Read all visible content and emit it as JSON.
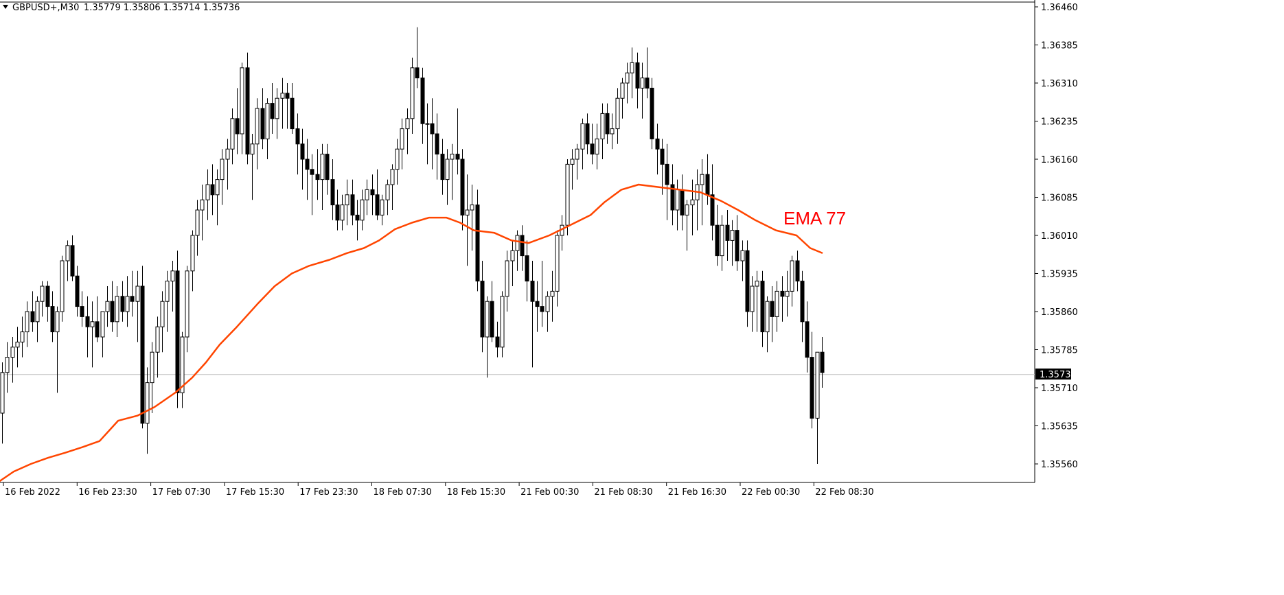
{
  "header": {
    "symbol": "GBPUSD+,M30",
    "ohlc": "1.35779 1.35806 1.35714 1.35736"
  },
  "ema_label": "EMA 77",
  "current_price_label": "1.35736",
  "colors": {
    "background": "#ffffff",
    "candle": "#000000",
    "ema": "#ff4500",
    "ema_label": "#ff0000",
    "price_line": "#c0c0c0"
  },
  "chart_data": {
    "type": "candlestick",
    "timeframe": "M30",
    "ylim": [
      1.3553,
      1.3647
    ],
    "yticks": [
      "1.36460",
      "1.36385",
      "1.36310",
      "1.36235",
      "1.36160",
      "1.36085",
      "1.36010",
      "1.35935",
      "1.35860",
      "1.35785",
      "1.35710",
      "1.35635",
      "1.35560"
    ],
    "xticks": [
      "16 Feb 2022",
      "16 Feb 23:30",
      "17 Feb 07:30",
      "17 Feb 15:30",
      "17 Feb 23:30",
      "18 Feb 07:30",
      "18 Feb 15:30",
      "21 Feb 00:30",
      "21 Feb 08:30",
      "21 Feb 16:30",
      "22 Feb 00:30",
      "22 Feb 08:30"
    ],
    "current_price": 1.35736,
    "candles": [
      [
        1.3566,
        1.3576,
        1.356,
        1.3574
      ],
      [
        1.3574,
        1.358,
        1.357,
        1.3577
      ],
      [
        1.3577,
        1.3581,
        1.3572,
        1.3579
      ],
      [
        1.3579,
        1.3583,
        1.3575,
        1.358
      ],
      [
        1.358,
        1.3585,
        1.3577,
        1.3582
      ],
      [
        1.3582,
        1.3588,
        1.3579,
        1.3586
      ],
      [
        1.3586,
        1.359,
        1.3582,
        1.3584
      ],
      [
        1.3584,
        1.3589,
        1.358,
        1.3588
      ],
      [
        1.3588,
        1.3592,
        1.3585,
        1.3591
      ],
      [
        1.3591,
        1.3592,
        1.3584,
        1.3587
      ],
      [
        1.3587,
        1.359,
        1.358,
        1.3582
      ],
      [
        1.3582,
        1.3587,
        1.357,
        1.3586
      ],
      [
        1.3586,
        1.3597,
        1.3584,
        1.3596
      ],
      [
        1.3596,
        1.36,
        1.3592,
        1.3599
      ],
      [
        1.3599,
        1.3601,
        1.3592,
        1.3593
      ],
      [
        1.3593,
        1.3595,
        1.3585,
        1.3587
      ],
      [
        1.3587,
        1.359,
        1.3583,
        1.3585
      ],
      [
        1.3585,
        1.3589,
        1.3577,
        1.3583
      ],
      [
        1.3583,
        1.3588,
        1.3575,
        1.3584
      ],
      [
        1.3584,
        1.3589,
        1.358,
        1.3581
      ],
      [
        1.3581,
        1.3586,
        1.3577,
        1.3586
      ],
      [
        1.3586,
        1.3591,
        1.3583,
        1.3588
      ],
      [
        1.3588,
        1.3592,
        1.3582,
        1.3584
      ],
      [
        1.3584,
        1.3591,
        1.3581,
        1.3589
      ],
      [
        1.3589,
        1.3592,
        1.3584,
        1.3586
      ],
      [
        1.3586,
        1.3593,
        1.3583,
        1.3589
      ],
      [
        1.3589,
        1.3594,
        1.3585,
        1.3588
      ],
      [
        1.3588,
        1.3594,
        1.358,
        1.3591
      ],
      [
        1.3591,
        1.3595,
        1.3563,
        1.3564
      ],
      [
        1.3564,
        1.3575,
        1.3558,
        1.3572
      ],
      [
        1.3572,
        1.358,
        1.3566,
        1.3578
      ],
      [
        1.3578,
        1.3585,
        1.3573,
        1.3583
      ],
      [
        1.3583,
        1.359,
        1.3578,
        1.3588
      ],
      [
        1.3588,
        1.3594,
        1.3582,
        1.3592
      ],
      [
        1.3592,
        1.3596,
        1.3586,
        1.3594
      ],
      [
        1.3594,
        1.3598,
        1.3567,
        1.357
      ],
      [
        1.357,
        1.3582,
        1.3567,
        1.3581
      ],
      [
        1.3581,
        1.3595,
        1.3578,
        1.3594
      ],
      [
        1.3594,
        1.3602,
        1.359,
        1.3601
      ],
      [
        1.3601,
        1.3608,
        1.3597,
        1.3606
      ],
      [
        1.3606,
        1.3611,
        1.36,
        1.3608
      ],
      [
        1.3608,
        1.3614,
        1.3604,
        1.3611
      ],
      [
        1.3611,
        1.3615,
        1.3605,
        1.3609
      ],
      [
        1.3609,
        1.3614,
        1.3603,
        1.3612
      ],
      [
        1.3612,
        1.3618,
        1.3607,
        1.3616
      ],
      [
        1.3616,
        1.362,
        1.361,
        1.3618
      ],
      [
        1.3618,
        1.3626,
        1.3615,
        1.3624
      ],
      [
        1.3624,
        1.363,
        1.3617,
        1.3621
      ],
      [
        1.3621,
        1.3635,
        1.3617,
        1.3634
      ],
      [
        1.3634,
        1.3637,
        1.3615,
        1.3617
      ],
      [
        1.3617,
        1.3621,
        1.3608,
        1.3619
      ],
      [
        1.3619,
        1.3628,
        1.3614,
        1.3626
      ],
      [
        1.3626,
        1.363,
        1.3618,
        1.362
      ],
      [
        1.362,
        1.3628,
        1.3616,
        1.3627
      ],
      [
        1.3627,
        1.3631,
        1.3621,
        1.3624
      ],
      [
        1.3624,
        1.363,
        1.362,
        1.3628
      ],
      [
        1.3628,
        1.3632,
        1.3622,
        1.3629
      ],
      [
        1.3629,
        1.3631,
        1.3622,
        1.3628
      ],
      [
        1.3628,
        1.3631,
        1.3621,
        1.3622
      ],
      [
        1.3622,
        1.3625,
        1.3613,
        1.3619
      ],
      [
        1.3619,
        1.3622,
        1.361,
        1.3616
      ],
      [
        1.3616,
        1.362,
        1.3608,
        1.3614
      ],
      [
        1.3614,
        1.3617,
        1.3605,
        1.3613
      ],
      [
        1.3613,
        1.3618,
        1.3608,
        1.3612
      ],
      [
        1.3612,
        1.3619,
        1.3606,
        1.3617
      ],
      [
        1.3617,
        1.3619,
        1.3609,
        1.3612
      ],
      [
        1.3612,
        1.3616,
        1.3604,
        1.3607
      ],
      [
        1.3607,
        1.361,
        1.3602,
        1.3604
      ],
      [
        1.3604,
        1.3609,
        1.3602,
        1.3607
      ],
      [
        1.3607,
        1.3612,
        1.3603,
        1.3609
      ],
      [
        1.3609,
        1.3612,
        1.3603,
        1.3605
      ],
      [
        1.3605,
        1.3608,
        1.36,
        1.3604
      ],
      [
        1.3604,
        1.361,
        1.3602,
        1.3608
      ],
      [
        1.3608,
        1.3612,
        1.3605,
        1.361
      ],
      [
        1.361,
        1.3613,
        1.3605,
        1.3609
      ],
      [
        1.3609,
        1.3614,
        1.3604,
        1.3605
      ],
      [
        1.3605,
        1.3609,
        1.3603,
        1.3608
      ],
      [
        1.3608,
        1.3612,
        1.3605,
        1.3611
      ],
      [
        1.3611,
        1.3615,
        1.3606,
        1.3614
      ],
      [
        1.3614,
        1.362,
        1.3611,
        1.3618
      ],
      [
        1.3618,
        1.3624,
        1.3614,
        1.3622
      ],
      [
        1.3622,
        1.3626,
        1.3617,
        1.3624
      ],
      [
        1.3624,
        1.3636,
        1.3621,
        1.3634
      ],
      [
        1.3634,
        1.3642,
        1.363,
        1.3632
      ],
      [
        1.3632,
        1.3634,
        1.3619,
        1.3623
      ],
      [
        1.3623,
        1.3627,
        1.3615,
        1.3623
      ],
      [
        1.3623,
        1.3628,
        1.3614,
        1.3621
      ],
      [
        1.3621,
        1.3625,
        1.3612,
        1.3617
      ],
      [
        1.3617,
        1.362,
        1.3609,
        1.3612
      ],
      [
        1.3612,
        1.3618,
        1.3607,
        1.3616
      ],
      [
        1.3616,
        1.3619,
        1.3608,
        1.3617
      ],
      [
        1.3617,
        1.3626,
        1.3613,
        1.3616
      ],
      [
        1.3616,
        1.3618,
        1.3602,
        1.3605
      ],
      [
        1.3605,
        1.3613,
        1.3595,
        1.3606
      ],
      [
        1.3606,
        1.3611,
        1.3598,
        1.3607
      ],
      [
        1.3607,
        1.361,
        1.359,
        1.3592
      ],
      [
        1.3592,
        1.3596,
        1.3578,
        1.3581
      ],
      [
        1.3581,
        1.3589,
        1.3573,
        1.3588
      ],
      [
        1.3588,
        1.3592,
        1.358,
        1.3581
      ],
      [
        1.3581,
        1.3584,
        1.3577,
        1.3579
      ],
      [
        1.3579,
        1.359,
        1.3577,
        1.3589
      ],
      [
        1.3589,
        1.3598,
        1.3586,
        1.3596
      ],
      [
        1.3596,
        1.36,
        1.3591,
        1.3598
      ],
      [
        1.3598,
        1.3602,
        1.3594,
        1.3601
      ],
      [
        1.3601,
        1.3603,
        1.3594,
        1.3597
      ],
      [
        1.3597,
        1.36,
        1.3588,
        1.3592
      ],
      [
        1.3592,
        1.3596,
        1.3575,
        1.3588
      ],
      [
        1.3588,
        1.3592,
        1.3582,
        1.3587
      ],
      [
        1.3587,
        1.3596,
        1.3583,
        1.3586
      ],
      [
        1.3586,
        1.359,
        1.3582,
        1.3589
      ],
      [
        1.3589,
        1.3594,
        1.3584,
        1.359
      ],
      [
        1.359,
        1.3602,
        1.3587,
        1.3601
      ],
      [
        1.3601,
        1.3605,
        1.3598,
        1.3603
      ],
      [
        1.3603,
        1.3616,
        1.3601,
        1.3615
      ],
      [
        1.3615,
        1.3618,
        1.361,
        1.3616
      ],
      [
        1.3616,
        1.3619,
        1.3612,
        1.3618
      ],
      [
        1.3618,
        1.3624,
        1.3614,
        1.3623
      ],
      [
        1.3623,
        1.3625,
        1.3617,
        1.3619
      ],
      [
        1.3619,
        1.3623,
        1.3615,
        1.3617
      ],
      [
        1.3617,
        1.3623,
        1.3614,
        1.362
      ],
      [
        1.362,
        1.3627,
        1.3616,
        1.3625
      ],
      [
        1.3625,
        1.3627,
        1.3619,
        1.3621
      ],
      [
        1.3621,
        1.3625,
        1.3618,
        1.3622
      ],
      [
        1.3622,
        1.363,
        1.3619,
        1.3628
      ],
      [
        1.3628,
        1.3632,
        1.3624,
        1.3631
      ],
      [
        1.3631,
        1.3635,
        1.3627,
        1.3633
      ],
      [
        1.3633,
        1.3638,
        1.3628,
        1.3635
      ],
      [
        1.3635,
        1.3637,
        1.3626,
        1.363
      ],
      [
        1.363,
        1.3635,
        1.3624,
        1.3632
      ],
      [
        1.3632,
        1.3638,
        1.3628,
        1.363
      ],
      [
        1.363,
        1.3632,
        1.3618,
        1.362
      ],
      [
        1.362,
        1.3623,
        1.3613,
        1.3618
      ],
      [
        1.3618,
        1.362,
        1.3609,
        1.3615
      ],
      [
        1.3615,
        1.3619,
        1.3604,
        1.3611
      ],
      [
        1.3611,
        1.3615,
        1.3603,
        1.3606
      ],
      [
        1.3606,
        1.3612,
        1.3602,
        1.361
      ],
      [
        1.361,
        1.3613,
        1.3602,
        1.3605
      ],
      [
        1.3605,
        1.3608,
        1.3598,
        1.3607
      ],
      [
        1.3607,
        1.3612,
        1.3601,
        1.3608
      ],
      [
        1.3608,
        1.3614,
        1.3602,
        1.3611
      ],
      [
        1.3611,
        1.3616,
        1.3603,
        1.3613
      ],
      [
        1.3613,
        1.3617,
        1.3607,
        1.3609
      ],
      [
        1.3609,
        1.3615,
        1.36,
        1.3603
      ],
      [
        1.3603,
        1.3607,
        1.3595,
        1.3597
      ],
      [
        1.3597,
        1.3605,
        1.3594,
        1.3603
      ],
      [
        1.3603,
        1.3606,
        1.3596,
        1.36
      ],
      [
        1.36,
        1.3604,
        1.3595,
        1.3602
      ],
      [
        1.3602,
        1.3605,
        1.3594,
        1.3596
      ],
      [
        1.3596,
        1.36,
        1.3592,
        1.3598
      ],
      [
        1.3598,
        1.36,
        1.3583,
        1.3586
      ],
      [
        1.3586,
        1.3593,
        1.3582,
        1.3591
      ],
      [
        1.3591,
        1.3594,
        1.3582,
        1.3592
      ],
      [
        1.3592,
        1.3594,
        1.3579,
        1.3582
      ],
      [
        1.3582,
        1.3589,
        1.3578,
        1.3588
      ],
      [
        1.3588,
        1.3591,
        1.358,
        1.3585
      ],
      [
        1.3585,
        1.3592,
        1.3582,
        1.359
      ],
      [
        1.359,
        1.3593,
        1.3584,
        1.3589
      ],
      [
        1.3589,
        1.3594,
        1.3585,
        1.359
      ],
      [
        1.359,
        1.3597,
        1.3587,
        1.3596
      ],
      [
        1.3596,
        1.3598,
        1.359,
        1.3592
      ],
      [
        1.3592,
        1.3594,
        1.358,
        1.3584
      ],
      [
        1.3584,
        1.3588,
        1.3574,
        1.3577
      ],
      [
        1.3577,
        1.3582,
        1.3563,
        1.3565
      ],
      [
        1.3565,
        1.3578,
        1.3556,
        1.3578
      ],
      [
        1.3578,
        1.3581,
        1.3571,
        1.3574
      ]
    ],
    "ema": {
      "name": "EMA 77",
      "points": [
        [
          -5,
          1.35522
        ],
        [
          20,
          1.35545
        ],
        [
          45,
          1.3556
        ],
        [
          70,
          1.35572
        ],
        [
          95,
          1.35582
        ],
        [
          120,
          1.35593
        ],
        [
          145,
          1.35605
        ],
        [
          172,
          1.35645
        ],
        [
          200,
          1.35655
        ],
        [
          225,
          1.35672
        ],
        [
          255,
          1.357
        ],
        [
          280,
          1.3573
        ],
        [
          300,
          1.3576
        ],
        [
          320,
          1.35795
        ],
        [
          345,
          1.3583
        ],
        [
          375,
          1.35875
        ],
        [
          400,
          1.3591
        ],
        [
          425,
          1.35935
        ],
        [
          450,
          1.3595
        ],
        [
          480,
          1.35962
        ],
        [
          505,
          1.35975
        ],
        [
          530,
          1.35985
        ],
        [
          552,
          1.36
        ],
        [
          575,
          1.36022
        ],
        [
          600,
          1.36035
        ],
        [
          625,
          1.36045
        ],
        [
          650,
          1.36045
        ],
        [
          670,
          1.36035
        ],
        [
          690,
          1.3602
        ],
        [
          720,
          1.36015
        ],
        [
          745,
          1.36
        ],
        [
          770,
          1.35995
        ],
        [
          800,
          1.3601
        ],
        [
          830,
          1.3603
        ],
        [
          860,
          1.3605
        ],
        [
          880,
          1.36075
        ],
        [
          905,
          1.361
        ],
        [
          930,
          1.3611
        ],
        [
          960,
          1.36105
        ],
        [
          990,
          1.361
        ],
        [
          1020,
          1.36095
        ],
        [
          1050,
          1.36078
        ],
        [
          1075,
          1.3606
        ],
        [
          1100,
          1.3604
        ],
        [
          1130,
          1.3602
        ],
        [
          1160,
          1.3601
        ],
        [
          1180,
          1.35985
        ],
        [
          1198,
          1.35975
        ]
      ]
    }
  }
}
